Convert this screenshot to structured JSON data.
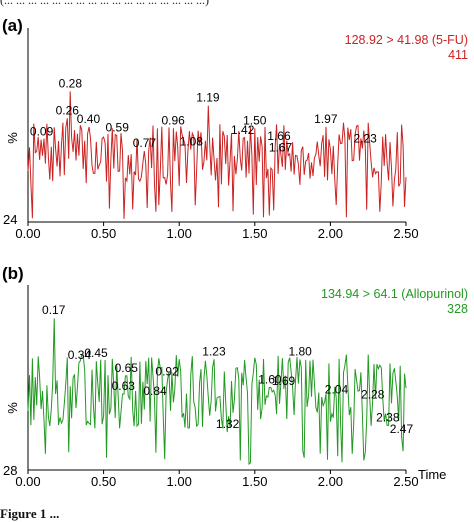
{
  "captions": {
    "top": "(... ... ... ... ... ... ... ... ... ... ... ... ... ... ... ... ...)",
    "bottom": "Figure 1 ..."
  },
  "chart_data": [
    {
      "type": "line",
      "panel_label": "(a)",
      "transition": "128.92 > 41.98 (5-FU)",
      "intensity": "411",
      "ylabel": "%",
      "ymin_label": "24",
      "xlabel": "",
      "xlim": [
        0.0,
        2.5
      ],
      "ylim": [
        0,
        100
      ],
      "xticks": [
        "0.00",
        "0.50",
        "1.00",
        "1.50",
        "2.00",
        "2.50"
      ],
      "color": "#cc2222",
      "peaks": [
        {
          "x": 0.09,
          "y": 58,
          "label": "0.09"
        },
        {
          "x": 0.26,
          "y": 73,
          "label": "0.26"
        },
        {
          "x": 0.28,
          "y": 92,
          "label": "0.28"
        },
        {
          "x": 0.4,
          "y": 67,
          "label": "0.40"
        },
        {
          "x": 0.59,
          "y": 61,
          "label": "0.59"
        },
        {
          "x": 0.77,
          "y": 50,
          "label": "0.77"
        },
        {
          "x": 0.96,
          "y": 66,
          "label": "0.96"
        },
        {
          "x": 1.08,
          "y": 51,
          "label": "1.08"
        },
        {
          "x": 1.19,
          "y": 82,
          "label": "1.19"
        },
        {
          "x": 1.42,
          "y": 59,
          "label": "1.42"
        },
        {
          "x": 1.5,
          "y": 66,
          "label": "1.50"
        },
        {
          "x": 1.66,
          "y": 55,
          "label": "1.66"
        },
        {
          "x": 1.67,
          "y": 47,
          "label": "1.67"
        },
        {
          "x": 1.97,
          "y": 67,
          "label": "1.97"
        },
        {
          "x": 2.23,
          "y": 53,
          "label": "2.23"
        }
      ]
    },
    {
      "type": "line",
      "panel_label": "(b)",
      "transition": "134.94 > 64.1 (Allopurinol)",
      "intensity": "328",
      "ylabel": "%",
      "ymin_label": "28",
      "xlabel": "Time",
      "xlim": [
        0.0,
        2.5
      ],
      "ylim": [
        0,
        100
      ],
      "xticks": [
        "0.00",
        "0.50",
        "1.00",
        "1.50",
        "2.00",
        "2.50"
      ],
      "color": "#229922",
      "peaks": [
        {
          "x": 0.17,
          "y": 92,
          "label": "0.17"
        },
        {
          "x": 0.34,
          "y": 65,
          "label": "0.34"
        },
        {
          "x": 0.45,
          "y": 66,
          "label": "0.45"
        },
        {
          "x": 0.63,
          "y": 46,
          "label": "0.63"
        },
        {
          "x": 0.65,
          "y": 57,
          "label": "0.65"
        },
        {
          "x": 0.84,
          "y": 43,
          "label": "0.84"
        },
        {
          "x": 0.92,
          "y": 55,
          "label": "0.92"
        },
        {
          "x": 1.23,
          "y": 67,
          "label": "1.23"
        },
        {
          "x": 1.32,
          "y": 23,
          "label": "1.32"
        },
        {
          "x": 1.6,
          "y": 50,
          "label": "1.60"
        },
        {
          "x": 1.69,
          "y": 49,
          "label": "1.69"
        },
        {
          "x": 1.8,
          "y": 67,
          "label": "1.80"
        },
        {
          "x": 2.04,
          "y": 44,
          "label": "2.04"
        },
        {
          "x": 2.28,
          "y": 41,
          "label": "2.28"
        },
        {
          "x": 2.38,
          "y": 27,
          "label": "2.38"
        },
        {
          "x": 2.47,
          "y": 20,
          "label": "2.47"
        }
      ]
    }
  ]
}
